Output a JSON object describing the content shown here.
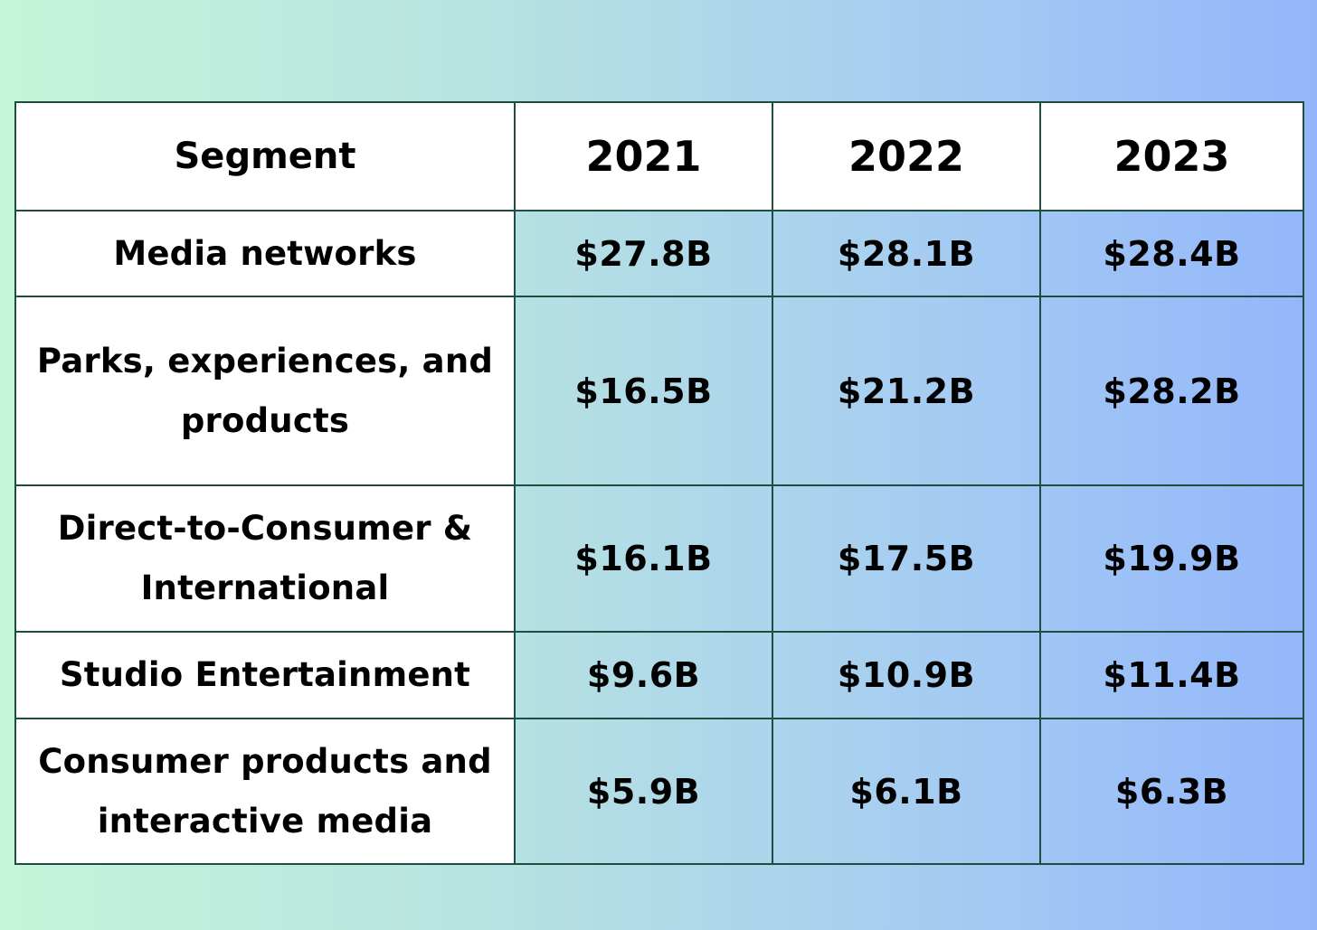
{
  "chart_data": {
    "type": "table",
    "columns": [
      "Segment",
      "2021",
      "2022",
      "2023"
    ],
    "rows": [
      {
        "segment": "Media networks",
        "values": [
          "$27.8B",
          "$28.1B",
          "$28.4B"
        ]
      },
      {
        "segment": "Parks, experiences, and products",
        "values": [
          "$16.5B",
          "$21.2B",
          "$28.2B"
        ]
      },
      {
        "segment": "Direct-to-Consumer & International",
        "values": [
          "$16.1B",
          "$17.5B",
          "$19.9B"
        ]
      },
      {
        "segment": "Studio Entertainment",
        "values": [
          "$9.6B",
          "$10.9B",
          "$11.4B"
        ]
      },
      {
        "segment": "Consumer products and interactive media",
        "values": [
          "$5.9B",
          "$6.1B",
          "$6.3B"
        ]
      }
    ]
  }
}
